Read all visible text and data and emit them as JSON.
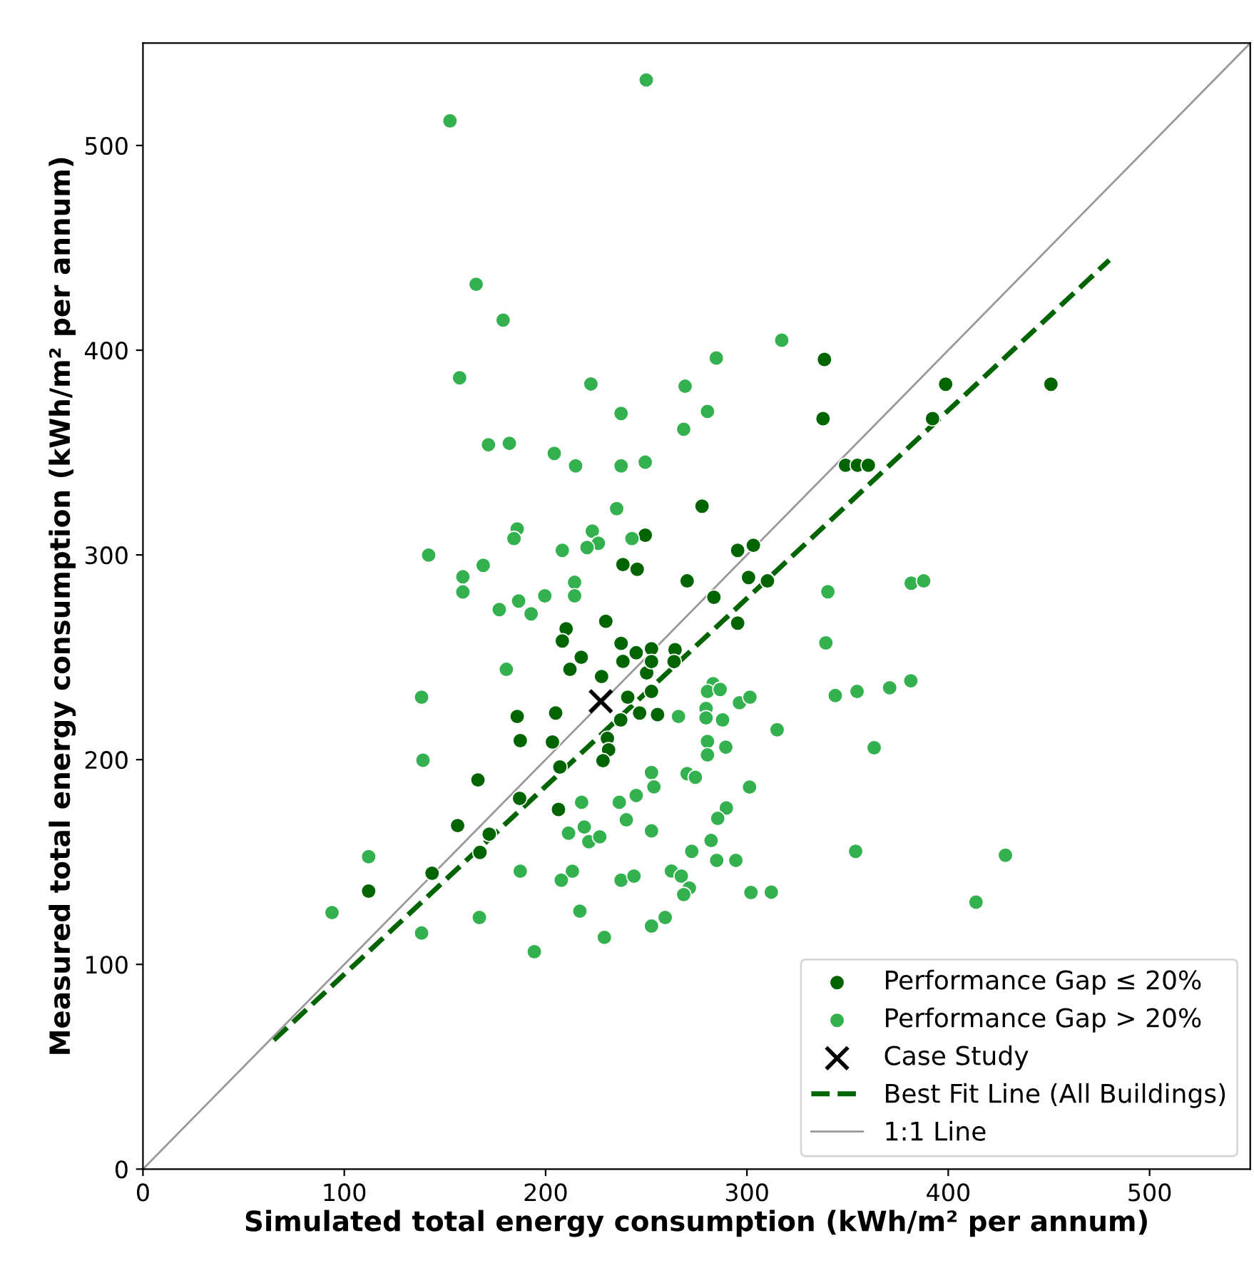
{
  "chart_data": {
    "type": "scatter",
    "xlabel": "Simulated total energy consumption (kWh/m² per annum)",
    "ylabel": "Measured total energy consumption (kWh/m² per annum)",
    "xlim": [
      0,
      550
    ],
    "ylim": [
      0,
      550
    ],
    "xticks": [
      0,
      100,
      200,
      300,
      400,
      500
    ],
    "yticks": [
      0,
      100,
      200,
      300,
      400,
      500
    ],
    "grid": false,
    "legend": "bottom right",
    "series": [
      {
        "name": "Performance Gap ≤ 20%",
        "marker": "circle",
        "color": "#006400",
        "x": [
          249.5,
          338.5,
          337.8,
          398.7,
          451,
          392.2,
          349,
          354.9,
          360.3,
          277.7,
          295.4,
          303.2,
          238.4,
          245.5,
          229.9,
          210.2,
          208.3,
          237.5,
          245,
          252.6,
          217.7,
          238.4,
          212.1,
          227.8,
          250.2,
          240.8,
          252.6,
          185.9,
          205,
          237.3,
          246.7,
          187.4,
          203.4,
          230.7,
          231.3,
          228.5,
          166.4,
          207.1,
          187.1,
          206.4,
          156.3,
          172,
          167.4,
          143.6,
          112.1,
          270.3,
          300.8,
          310.2,
          283.6,
          295.4,
          264.3,
          252.6,
          263.8,
          255.6
        ],
        "values": [
          309.6,
          395.5,
          366.6,
          383.4,
          383.4,
          366.6,
          343.8,
          343.8,
          343.8,
          323.8,
          302.2,
          304.7,
          295.3,
          293,
          267.6,
          263.9,
          258,
          256.8,
          252.2,
          254.2,
          250,
          248,
          244.1,
          240.6,
          242.4,
          230.5,
          233.3,
          221.1,
          222.8,
          219.4,
          222.8,
          209.3,
          208.6,
          210.4,
          204.8,
          199.5,
          190.1,
          196.4,
          181.1,
          175.7,
          167.8,
          163.6,
          154.7,
          144.5,
          135.8,
          287.3,
          289,
          287.3,
          279.3,
          266.7,
          253.7,
          247.9,
          247.9,
          222
        ]
      },
      {
        "name": "Performance Gap > 20%",
        "marker": "circle",
        "color": "#33b14f",
        "x": [
          250,
          152.5,
          165.5,
          178.9,
          157.3,
          222.5,
          237.5,
          171.6,
          182,
          204.3,
          214.9,
          237.5,
          249.5,
          235.3,
          185.9,
          184.3,
          223.2,
          226.2,
          220.6,
          242.9,
          208.3,
          141.9,
          317.3,
          284.8,
          269.3,
          280.4,
          268.6,
          169,
          158.9,
          158.9,
          177,
          186.6,
          192.8,
          199.6,
          214.4,
          214.4,
          180.5,
          138.4,
          139.1,
          252.6,
          253.8,
          245,
          217.9,
          236.6,
          240.1,
          211.4,
          219.2,
          221.5,
          226.9,
          252.6,
          112.1,
          187.4,
          213.3,
          207.8,
          237.5,
          243.9,
          93.9,
          167.1,
          217,
          252.6,
          138.4,
          229.2,
          194.4,
          340.2,
          381.6,
          387.8,
          339.2,
          266,
          283.2,
          280.4,
          286.7,
          296.3,
          301.5,
          279.7,
          279.7,
          287.9,
          315,
          280.4,
          280.4,
          289.5,
          343.9,
          354.7,
          370.9,
          381.4,
          363.2,
          270.3,
          274.4,
          301.3,
          289.8,
          285.5,
          282.2,
          272.6,
          285,
          294.5,
          354,
          428.4,
          262.5,
          267.4,
          271.4,
          268.6,
          302,
          312.1,
          259.4,
          413.8
        ],
        "values": [
          532,
          512,
          432.2,
          414.7,
          386.5,
          383.5,
          369.1,
          353.8,
          354.5,
          349.6,
          343.5,
          343.5,
          345.3,
          322.6,
          312.7,
          308,
          311.6,
          305.7,
          303.6,
          308,
          302.2,
          299.9,
          404.9,
          396.2,
          382.4,
          370.1,
          361.4,
          294.9,
          289.3,
          281.9,
          273.3,
          277.5,
          271.2,
          280,
          286.6,
          280,
          244.1,
          230.5,
          199.7,
          193.7,
          186.7,
          182.5,
          179.2,
          179.2,
          170.6,
          164.1,
          167.1,
          159.9,
          162.3,
          165.2,
          152.6,
          145.5,
          145.5,
          141.1,
          141.1,
          143.1,
          125.3,
          122.9,
          126,
          118.7,
          115.3,
          113.2,
          106.2,
          282,
          286.2,
          287.3,
          257,
          221.1,
          237.1,
          233.3,
          234.3,
          227.8,
          230.5,
          225,
          220.4,
          219.4,
          214.6,
          208.9,
          202.3,
          206.1,
          231.3,
          233.3,
          235.1,
          238.5,
          205.8,
          193.2,
          191.4,
          186.6,
          176.4,
          171.3,
          160.5,
          155.2,
          150.8,
          150.8,
          155.2,
          153.3,
          145.6,
          143.1,
          137.3,
          134.1,
          135.1,
          135.3,
          122.9,
          130.4
        ]
      },
      {
        "name": "Case Study",
        "marker": "cross",
        "color": "#000000",
        "x": [
          227.4
        ],
        "values": [
          228.5
        ]
      },
      {
        "name": "Best Fit Line (All Buildings)",
        "type": "line",
        "line_style": "dashed",
        "color": "#006400",
        "x": [
          65,
          480
        ],
        "values": [
          63,
          444
        ]
      },
      {
        "name": "1:1 Line",
        "type": "line",
        "line_style": "solid",
        "color": "#999999",
        "x": [
          0,
          550
        ],
        "values": [
          0,
          550
        ]
      }
    ]
  }
}
